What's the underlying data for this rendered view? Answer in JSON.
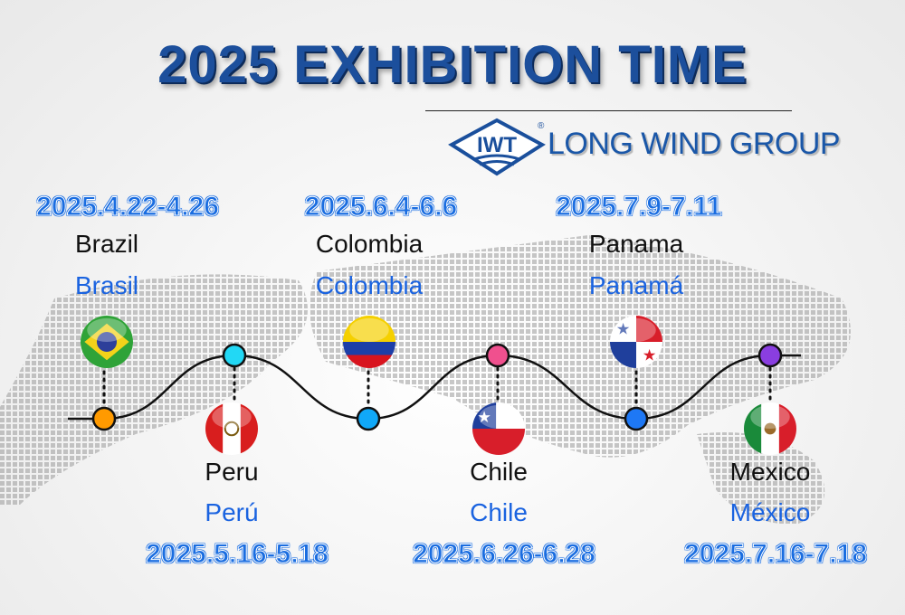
{
  "title": "2025 EXHIBITION TIME",
  "brand": {
    "logo_text": "IWT",
    "registered": "®",
    "name": "LONG WIND GROUP"
  },
  "exhibitions": [
    {
      "date": "2025.4.22-4.26",
      "country_en": "Brazil",
      "country_es": "Brasil",
      "node_color": "#ff9a00",
      "flag": "brazil-flag"
    },
    {
      "date": "2025.5.16-5.18",
      "country_en": "Peru",
      "country_es": "Perú",
      "node_color": "#22d8f5",
      "flag": "peru-flag"
    },
    {
      "date": "2025.6.4-6.6",
      "country_en": "Colombia",
      "country_es": "Colombia",
      "node_color": "#10a8f8",
      "flag": "colombia-flag"
    },
    {
      "date": "2025.6.26-6.28",
      "country_en": "Chile",
      "country_es": "Chile",
      "node_color": "#f0508e",
      "flag": "chile-flag"
    },
    {
      "date": "2025.7.9-7.11",
      "country_en": "Panama",
      "country_es": "Panamá",
      "node_color": "#1e78f5",
      "flag": "panama-flag"
    },
    {
      "date": "2025.7.16-7.18",
      "country_en": "Mexico",
      "country_es": "México",
      "node_color": "#8a3ee0",
      "flag": "mexico-flag"
    }
  ]
}
